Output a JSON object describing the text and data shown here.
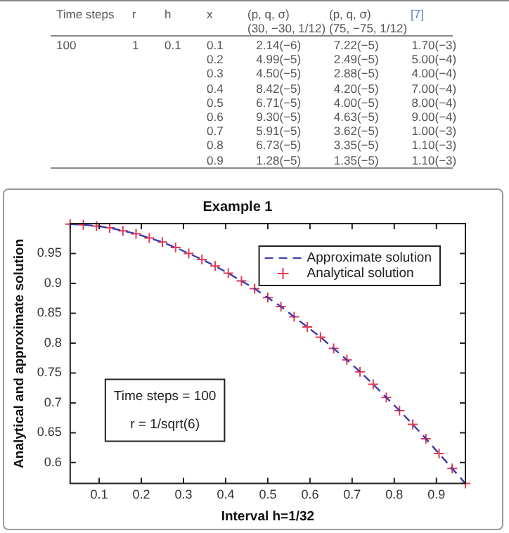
{
  "chart_data": [
    {
      "type": "other",
      "annotations": [
        "Time steps",
        "r",
        "h",
        "x",
        "(p, q, σ) (30, −30, 1/12)",
        "(p, q, σ) (75, −75, 1/12)",
        "[7]",
        "100",
        "1",
        "0.1",
        "0.1 2.14(−6) 7.22(−5) 1.70(−3)",
        "0.2 4.99(−5) 2.49(−5) 5.00(−4)",
        "0.3 4.50(−5) 2.88(−5) 4.00(−4)",
        "0.4 8.42(−5) 4.20(−5) 7.00(−4)",
        "0.5 6.71(−5) 4.00(−5) 8.00(−4)",
        "0.6 9.30(−5) 4.63(−5) 9.00(−4)",
        "0.7 5.91(−5) 3.62(−5) 1.00(−3)",
        "0.8 6.73(−5) 3.35(−5) 1.10(−3)",
        "0.9 1.28(−5) 1.35(−5) 1.10(−3)"
      ]
    },
    {
      "type": "line",
      "title": "Example 1",
      "xlabel": "Interval h=1/32",
      "ylabel": "Analytical and approximate solution",
      "x": [
        0.03125,
        0.0625,
        0.09375,
        0.125,
        0.15625,
        0.1875,
        0.21875,
        0.25,
        0.28125,
        0.3125,
        0.34375,
        0.375,
        0.40625,
        0.4375,
        0.46875,
        0.5,
        0.53125,
        0.5625,
        0.59375,
        0.625,
        0.65625,
        0.6875,
        0.71875,
        0.75,
        0.78125,
        0.8125,
        0.84375,
        0.875,
        0.90625,
        0.9375,
        0.96875
      ],
      "series": [
        {
          "name": "Approximate solution",
          "type": "line",
          "color": "#3b3bb0",
          "line_style": "dashed",
          "marker": "none",
          "values": [
            0.999,
            0.998,
            0.996,
            0.993,
            0.988,
            0.983,
            0.976,
            0.969,
            0.96,
            0.95,
            0.94,
            0.929,
            0.917,
            0.904,
            0.891,
            0.876,
            0.861,
            0.844,
            0.827,
            0.81,
            0.791,
            0.772,
            0.752,
            0.731,
            0.709,
            0.687,
            0.664,
            0.64,
            0.615,
            0.59,
            0.565
          ]
        },
        {
          "name": "Analytical solution",
          "type": "scatter",
          "color": "#e8384f",
          "marker": "cross",
          "values": [
            0.999,
            0.998,
            0.996,
            0.993,
            0.988,
            0.983,
            0.976,
            0.969,
            0.96,
            0.95,
            0.94,
            0.929,
            0.917,
            0.904,
            0.891,
            0.876,
            0.861,
            0.844,
            0.827,
            0.81,
            0.791,
            0.772,
            0.752,
            0.731,
            0.709,
            0.687,
            0.664,
            0.64,
            0.615,
            0.59,
            0.565
          ]
        }
      ],
      "xlim": [
        0.03125,
        0.96875
      ],
      "xticks": [
        0.1,
        0.2,
        0.3,
        0.4,
        0.5,
        0.6,
        0.7,
        0.8,
        0.9
      ],
      "ylim": [
        0.565,
        1
      ],
      "yticks": [
        0.6,
        0.65,
        0.7,
        0.75,
        0.8,
        0.85,
        0.9,
        0.95
      ],
      "legend": "top right",
      "annotations": [
        "Time steps = 100",
        "r = 1/sqrt(6)"
      ]
    }
  ]
}
